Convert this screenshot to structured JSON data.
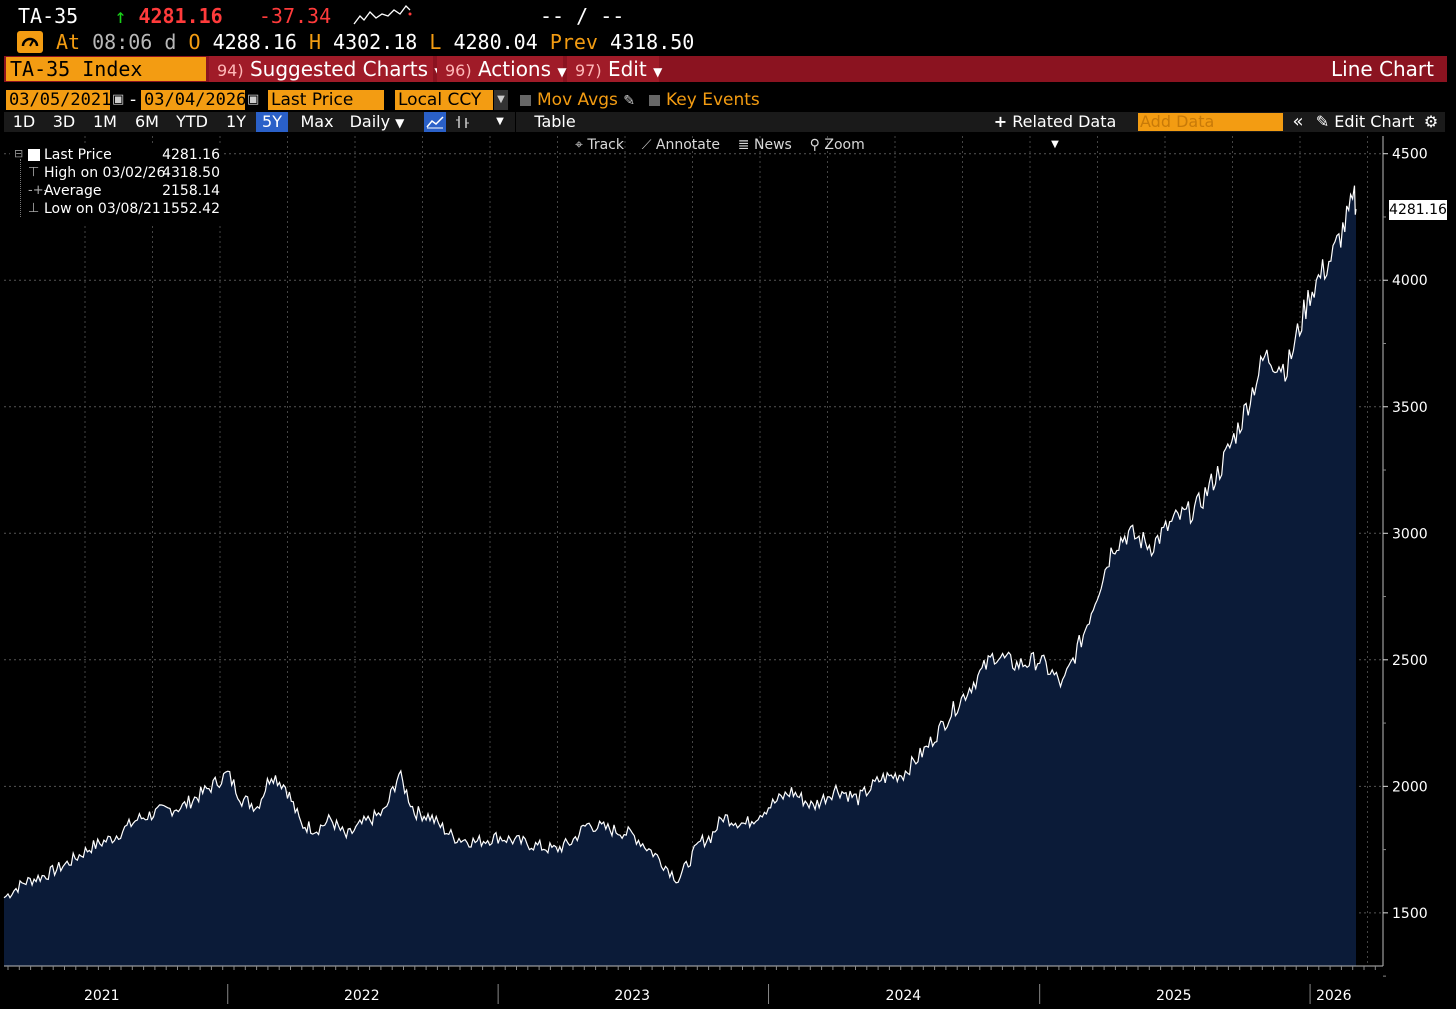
{
  "header": {
    "ticker": "TA-35",
    "arrow": "↑",
    "last": "4281.16",
    "change": "-37.34",
    "bidask": "-- / --",
    "at_label": "At",
    "time": "08:06",
    "d_label": "d",
    "o_label": "O",
    "open": "4288.16",
    "h_label": "H",
    "high": "4302.18",
    "l_label": "L",
    "low": "4280.04",
    "prev_label": "Prev",
    "prev": "4318.50"
  },
  "menubar": {
    "security": "TA-35 Index",
    "suggested_num": "94)",
    "suggested": "Suggested Charts",
    "actions_num": "96)",
    "actions": "Actions",
    "edit_num": "97)",
    "edit": "Edit",
    "view_title": "Line Chart"
  },
  "controls": {
    "start_date": "03/05/2021",
    "end_date": "03/04/2026",
    "dash": "-",
    "field": "Last Price",
    "currency": "Local CCY",
    "mov_avgs": "Mov Avgs",
    "key_events": "Key Events"
  },
  "toolbar": {
    "periods": [
      "1D",
      "3D",
      "1M",
      "6M",
      "YTD",
      "1Y",
      "5Y",
      "Max"
    ],
    "active_period": "5Y",
    "frequency": "Daily",
    "table": "Table",
    "related_data": "Related Data",
    "add_data_placeholder": "Add Data",
    "edit_chart": "Edit Chart"
  },
  "chart_tools": {
    "track": "Track",
    "annotate": "Annotate",
    "news": "News",
    "zoom": "Zoom"
  },
  "legend": {
    "last_label": "Last Price",
    "last_value": "4281.16",
    "high_label": "High on 03/02/26",
    "high_value": "4318.50",
    "avg_label": "Average",
    "avg_value": "2158.14",
    "low_label": "Low on 03/08/21",
    "low_value": "1552.42"
  },
  "colors": {
    "accent": "#f39c12",
    "menubar": "#8b1320",
    "area_fill": "#0b1b38",
    "line": "#ffffff",
    "down": "#ff3b3b"
  },
  "chart_data": {
    "type": "area",
    "title": "",
    "xlabel": "",
    "ylabel": "",
    "x_ticks": [
      "2021",
      "2022",
      "2023",
      "2024",
      "2025",
      "2026"
    ],
    "y_ticks": [
      1500,
      2000,
      2500,
      3000,
      3500,
      4000,
      4500
    ],
    "ylim": [
      1290,
      4570
    ],
    "xlim": [
      "2021-03-05",
      "2026-03-04"
    ],
    "grid": true,
    "last_value_tag": "4281.16",
    "series": [
      {
        "x": [
          "2021-03-05",
          "2021-04-01",
          "2021-05-01",
          "2021-06-01",
          "2021-07-01",
          "2021-08-01",
          "2021-09-01",
          "2021-10-01",
          "2021-11-01",
          "2021-12-01",
          "2022-01-01",
          "2022-01-20",
          "2022-02-10",
          "2022-03-01",
          "2022-03-20",
          "2022-04-10",
          "2022-05-01",
          "2022-05-20",
          "2022-06-10",
          "2022-07-01",
          "2022-08-01",
          "2022-08-20",
          "2022-09-10",
          "2022-10-01",
          "2022-11-01",
          "2022-12-01",
          "2023-01-01",
          "2023-02-01",
          "2023-03-01",
          "2023-03-20",
          "2023-04-10",
          "2023-05-01",
          "2023-06-01",
          "2023-07-01",
          "2023-08-01",
          "2023-09-01",
          "2023-10-01",
          "2023-10-15",
          "2023-11-01",
          "2023-12-01",
          "2024-01-01",
          "2024-02-01",
          "2024-03-01",
          "2024-04-01",
          "2024-05-01",
          "2024-06-01",
          "2024-07-01",
          "2024-08-01",
          "2024-09-01",
          "2024-10-01",
          "2024-11-01",
          "2024-12-01",
          "2025-01-01",
          "2025-02-01",
          "2025-03-01",
          "2025-04-10",
          "2025-05-01",
          "2025-06-01",
          "2025-07-01",
          "2025-08-01",
          "2025-09-01",
          "2025-10-01",
          "2025-11-01",
          "2025-12-01",
          "2026-01-01",
          "2026-02-01",
          "2026-03-02",
          "2026-03-04"
        ],
        "y": [
          1560,
          1620,
          1650,
          1700,
          1760,
          1800,
          1870,
          1900,
          1920,
          1980,
          2050,
          1950,
          1920,
          2050,
          2000,
          1850,
          1830,
          1870,
          1800,
          1850,
          1900,
          2050,
          1900,
          1880,
          1800,
          1780,
          1800,
          1780,
          1760,
          1750,
          1780,
          1850,
          1830,
          1810,
          1730,
          1630,
          1780,
          1800,
          1880,
          1850,
          1920,
          1980,
          1920,
          1990,
          1950,
          2030,
          2050,
          2150,
          2280,
          2400,
          2520,
          2480,
          2500,
          2400,
          2600,
          2950,
          3000,
          2950,
          3050,
          3100,
          3250,
          3450,
          3700,
          3650,
          3950,
          4100,
          4318.5,
          4281.16
        ]
      }
    ]
  }
}
